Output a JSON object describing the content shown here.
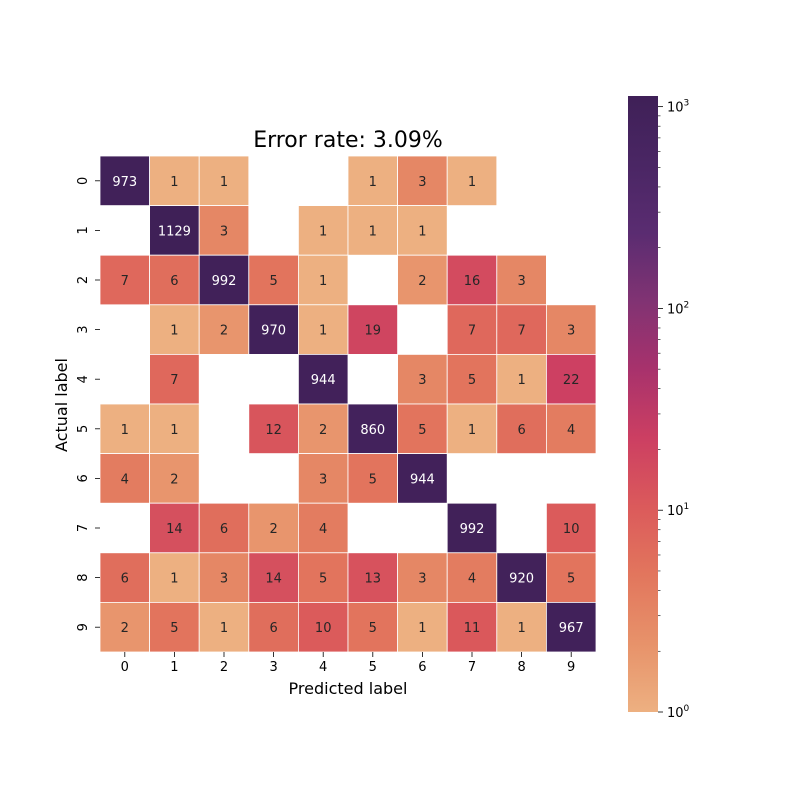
{
  "chart_data": {
    "type": "heatmap",
    "title": "Error rate: 3.09%",
    "xlabel": "Predicted label",
    "ylabel": "Actual label",
    "x_categories": [
      "0",
      "1",
      "2",
      "3",
      "4",
      "5",
      "6",
      "7",
      "8",
      "9"
    ],
    "y_categories": [
      "0",
      "1",
      "2",
      "3",
      "4",
      "5",
      "6",
      "7",
      "8",
      "9"
    ],
    "matrix": [
      [
        973,
        1,
        1,
        null,
        null,
        1,
        3,
        1,
        null,
        null
      ],
      [
        null,
        1129,
        3,
        null,
        1,
        1,
        1,
        null,
        null,
        null
      ],
      [
        7,
        6,
        992,
        5,
        1,
        null,
        2,
        16,
        3,
        null
      ],
      [
        null,
        1,
        2,
        970,
        1,
        19,
        null,
        7,
        7,
        3
      ],
      [
        null,
        7,
        null,
        null,
        944,
        null,
        3,
        5,
        1,
        22
      ],
      [
        1,
        1,
        null,
        12,
        2,
        860,
        5,
        1,
        6,
        4
      ],
      [
        4,
        2,
        null,
        null,
        3,
        5,
        944,
        null,
        null,
        null
      ],
      [
        null,
        14,
        6,
        2,
        4,
        null,
        null,
        992,
        null,
        10
      ],
      [
        6,
        1,
        3,
        14,
        5,
        13,
        3,
        4,
        920,
        5
      ],
      [
        2,
        5,
        1,
        6,
        10,
        5,
        1,
        11,
        1,
        967
      ]
    ],
    "colorbar": {
      "scale": "log",
      "range": [
        1,
        1129
      ],
      "colormap": "flare",
      "color_stops": [
        "#edb081",
        "#e7926a",
        "#e2765d",
        "#db5a5b",
        "#cc3f62",
        "#a8326c",
        "#813373",
        "#5a2c71",
        "#4a2664",
        "#3f2057"
      ],
      "tick_labels": [
        {
          "base": "10",
          "exp": "0"
        },
        {
          "base": "10",
          "exp": "1"
        },
        {
          "base": "10",
          "exp": "2"
        },
        {
          "base": "10",
          "exp": "3"
        }
      ]
    },
    "grid": false
  }
}
